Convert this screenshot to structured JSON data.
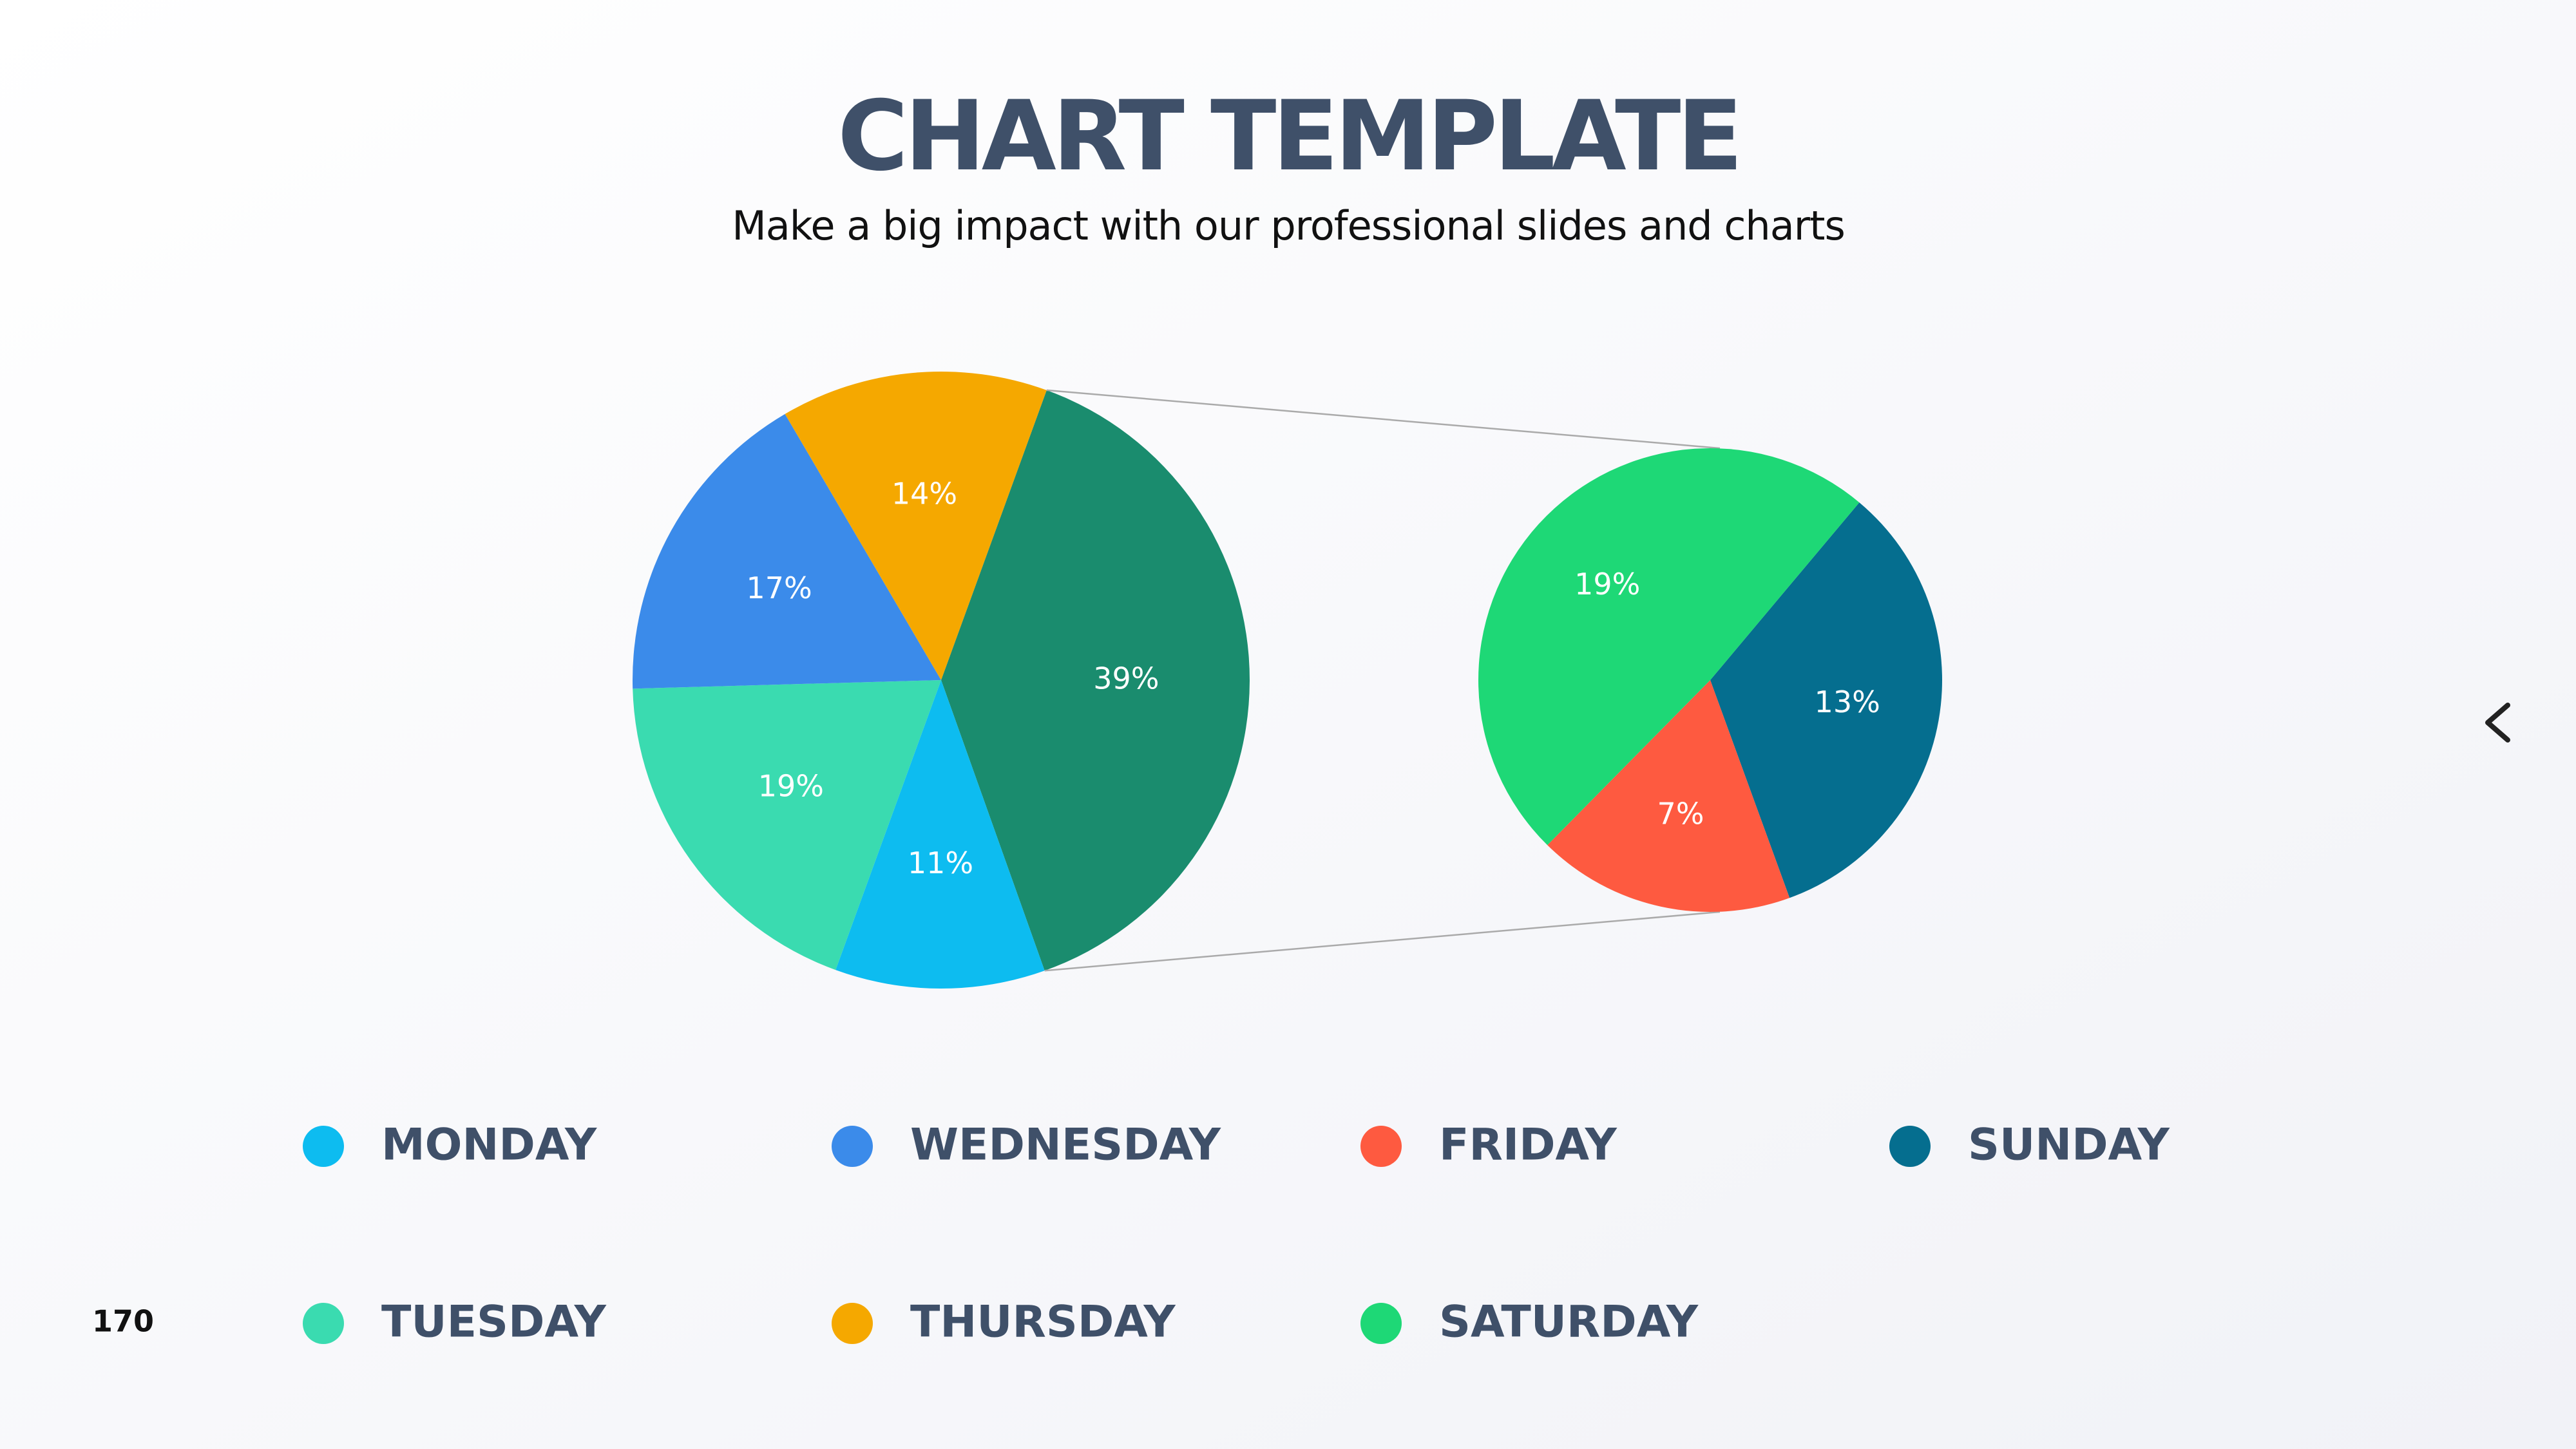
{
  "page_number": "170",
  "chart_data": {
    "type": "pie-of-pie",
    "title": "CHART TEMPLATE",
    "subtitle": "Make a big impact with our professional slides and charts",
    "categories": [
      "MONDAY",
      "TUESDAY",
      "WEDNESDAY",
      "THURSDAY",
      "FRIDAY",
      "SATURDAY",
      "SUNDAY"
    ],
    "values": [
      11,
      19,
      17,
      14,
      7,
      19,
      13
    ],
    "value_labels": [
      "11%",
      "19%",
      "17%",
      "14%",
      "7%",
      "19%",
      "13%"
    ],
    "colors": [
      "#0dbcf0",
      "#3adbb0",
      "#3b8bea",
      "#f5a800",
      "#fe5a40",
      "#1ed876",
      "#056e8f"
    ],
    "other_value": 39,
    "other_label": "39%",
    "other_color": "#1a8c6e"
  }
}
